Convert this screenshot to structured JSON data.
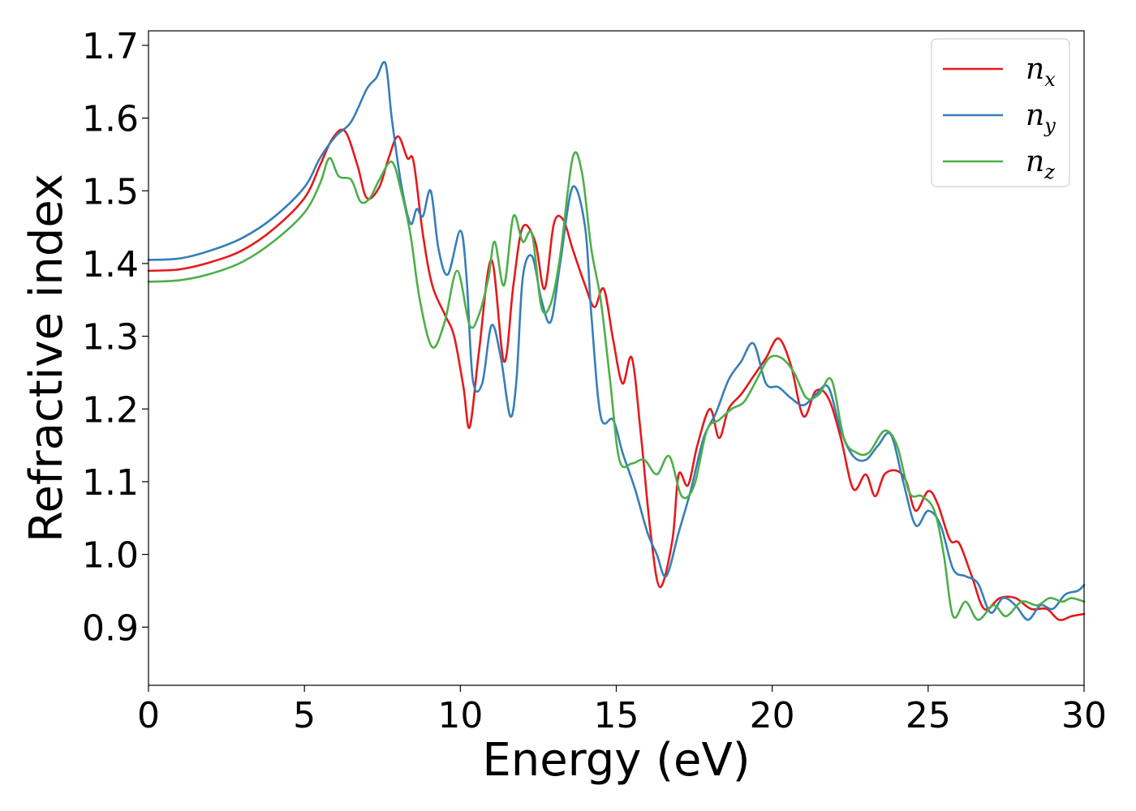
{
  "chart_data": {
    "type": "line",
    "title": "",
    "xlabel": "Energy (eV)",
    "ylabel": "Refractive index",
    "xlim": [
      0,
      30
    ],
    "ylim": [
      0.82,
      1.72
    ],
    "xticks": [
      0,
      5,
      10,
      15,
      20,
      25,
      30
    ],
    "xtick_labels": [
      "0",
      "5",
      "10",
      "15",
      "20",
      "25",
      "30"
    ],
    "yticks": [
      0.9,
      1.0,
      1.1,
      1.2,
      1.3,
      1.4,
      1.5,
      1.6,
      1.7
    ],
    "ytick_labels": [
      "0.9",
      "1.0",
      "1.1",
      "1.2",
      "1.3",
      "1.4",
      "1.5",
      "1.6",
      "1.7"
    ],
    "grid": false,
    "legend_position": "top-right",
    "series": [
      {
        "name": "n",
        "subscript": "x",
        "color": "#e41a1c",
        "points": [
          [
            0,
            1.39
          ],
          [
            1,
            1.392
          ],
          [
            2,
            1.402
          ],
          [
            3,
            1.418
          ],
          [
            4,
            1.447
          ],
          [
            5,
            1.49
          ],
          [
            5.5,
            1.535
          ],
          [
            5.9,
            1.572
          ],
          [
            6.3,
            1.582
          ],
          [
            6.7,
            1.535
          ],
          [
            7,
            1.49
          ],
          [
            7.4,
            1.505
          ],
          [
            7.7,
            1.545
          ],
          [
            8,
            1.575
          ],
          [
            8.3,
            1.545
          ],
          [
            8.5,
            1.54
          ],
          [
            8.8,
            1.44
          ],
          [
            9.1,
            1.37
          ],
          [
            9.5,
            1.33
          ],
          [
            9.8,
            1.3
          ],
          [
            10.1,
            1.23
          ],
          [
            10.3,
            1.175
          ],
          [
            10.6,
            1.28
          ],
          [
            11,
            1.405
          ],
          [
            11.4,
            1.265
          ],
          [
            11.7,
            1.37
          ],
          [
            12,
            1.45
          ],
          [
            12.4,
            1.43
          ],
          [
            12.7,
            1.365
          ],
          [
            13,
            1.455
          ],
          [
            13.3,
            1.46
          ],
          [
            13.6,
            1.42
          ],
          [
            14,
            1.37
          ],
          [
            14.3,
            1.34
          ],
          [
            14.6,
            1.365
          ],
          [
            14.9,
            1.295
          ],
          [
            15.2,
            1.235
          ],
          [
            15.5,
            1.27
          ],
          [
            15.8,
            1.16
          ],
          [
            16.1,
            1.03
          ],
          [
            16.4,
            0.955
          ],
          [
            16.8,
            1.02
          ],
          [
            17,
            1.11
          ],
          [
            17.3,
            1.095
          ],
          [
            17.6,
            1.15
          ],
          [
            18,
            1.2
          ],
          [
            18.3,
            1.16
          ],
          [
            18.6,
            1.2
          ],
          [
            19,
            1.22
          ],
          [
            19.4,
            1.245
          ],
          [
            19.8,
            1.27
          ],
          [
            20.2,
            1.297
          ],
          [
            20.6,
            1.26
          ],
          [
            21,
            1.19
          ],
          [
            21.4,
            1.225
          ],
          [
            21.8,
            1.215
          ],
          [
            22.2,
            1.16
          ],
          [
            22.6,
            1.09
          ],
          [
            23,
            1.11
          ],
          [
            23.3,
            1.08
          ],
          [
            23.6,
            1.11
          ],
          [
            24,
            1.115
          ],
          [
            24.3,
            1.1
          ],
          [
            24.6,
            1.06
          ],
          [
            25,
            1.087
          ],
          [
            25.3,
            1.07
          ],
          [
            25.7,
            1.02
          ],
          [
            26,
            1.015
          ],
          [
            26.4,
            0.97
          ],
          [
            26.8,
            0.925
          ],
          [
            27.3,
            0.94
          ],
          [
            27.8,
            0.94
          ],
          [
            28.3,
            0.925
          ],
          [
            28.8,
            0.925
          ],
          [
            29.2,
            0.91
          ],
          [
            29.6,
            0.915
          ],
          [
            30,
            0.918
          ]
        ]
      },
      {
        "name": "n",
        "subscript": "y",
        "color": "#377eb8",
        "points": [
          [
            0,
            1.405
          ],
          [
            1,
            1.407
          ],
          [
            2,
            1.418
          ],
          [
            3,
            1.435
          ],
          [
            4,
            1.463
          ],
          [
            5,
            1.505
          ],
          [
            5.5,
            1.545
          ],
          [
            6,
            1.575
          ],
          [
            6.5,
            1.595
          ],
          [
            7,
            1.64
          ],
          [
            7.3,
            1.655
          ],
          [
            7.6,
            1.675
          ],
          [
            7.8,
            1.6
          ],
          [
            8.1,
            1.51
          ],
          [
            8.4,
            1.455
          ],
          [
            8.6,
            1.475
          ],
          [
            8.8,
            1.465
          ],
          [
            9.05,
            1.5
          ],
          [
            9.3,
            1.42
          ],
          [
            9.6,
            1.385
          ],
          [
            10,
            1.445
          ],
          [
            10.2,
            1.38
          ],
          [
            10.4,
            1.24
          ],
          [
            10.7,
            1.235
          ],
          [
            11,
            1.315
          ],
          [
            11.3,
            1.27
          ],
          [
            11.6,
            1.19
          ],
          [
            11.8,
            1.24
          ],
          [
            12,
            1.38
          ],
          [
            12.3,
            1.41
          ],
          [
            12.6,
            1.35
          ],
          [
            12.9,
            1.32
          ],
          [
            13.2,
            1.4
          ],
          [
            13.6,
            1.505
          ],
          [
            14,
            1.45
          ],
          [
            14.2,
            1.33
          ],
          [
            14.5,
            1.19
          ],
          [
            14.9,
            1.185
          ],
          [
            15.2,
            1.14
          ],
          [
            15.6,
            1.09
          ],
          [
            16,
            1.03
          ],
          [
            16.3,
            1.0
          ],
          [
            16.6,
            0.97
          ],
          [
            17,
            1.03
          ],
          [
            17.4,
            1.09
          ],
          [
            17.8,
            1.16
          ],
          [
            18.2,
            1.195
          ],
          [
            18.6,
            1.24
          ],
          [
            19,
            1.265
          ],
          [
            19.4,
            1.29
          ],
          [
            19.8,
            1.235
          ],
          [
            20.2,
            1.23
          ],
          [
            20.6,
            1.215
          ],
          [
            21,
            1.205
          ],
          [
            21.4,
            1.22
          ],
          [
            21.8,
            1.23
          ],
          [
            22.2,
            1.17
          ],
          [
            22.6,
            1.135
          ],
          [
            23,
            1.13
          ],
          [
            23.4,
            1.15
          ],
          [
            23.8,
            1.165
          ],
          [
            24.2,
            1.1
          ],
          [
            24.6,
            1.04
          ],
          [
            25,
            1.06
          ],
          [
            25.4,
            1.04
          ],
          [
            25.8,
            0.98
          ],
          [
            26.2,
            0.97
          ],
          [
            26.6,
            0.96
          ],
          [
            27,
            0.92
          ],
          [
            27.4,
            0.94
          ],
          [
            27.8,
            0.93
          ],
          [
            28.2,
            0.91
          ],
          [
            28.6,
            0.93
          ],
          [
            29,
            0.925
          ],
          [
            29.4,
            0.945
          ],
          [
            29.8,
            0.95
          ],
          [
            30,
            0.958
          ]
        ]
      },
      {
        "name": "n",
        "subscript": "z",
        "color": "#4daf4a",
        "points": [
          [
            0,
            1.375
          ],
          [
            1,
            1.377
          ],
          [
            2,
            1.386
          ],
          [
            3,
            1.402
          ],
          [
            4,
            1.43
          ],
          [
            5,
            1.47
          ],
          [
            5.5,
            1.51
          ],
          [
            5.8,
            1.545
          ],
          [
            6.1,
            1.52
          ],
          [
            6.5,
            1.515
          ],
          [
            6.8,
            1.485
          ],
          [
            7.1,
            1.49
          ],
          [
            7.4,
            1.515
          ],
          [
            7.8,
            1.54
          ],
          [
            8.1,
            1.5
          ],
          [
            8.4,
            1.44
          ],
          [
            8.7,
            1.35
          ],
          [
            9.1,
            1.285
          ],
          [
            9.5,
            1.32
          ],
          [
            9.9,
            1.39
          ],
          [
            10.3,
            1.315
          ],
          [
            10.6,
            1.33
          ],
          [
            10.9,
            1.38
          ],
          [
            11.1,
            1.43
          ],
          [
            11.4,
            1.37
          ],
          [
            11.7,
            1.465
          ],
          [
            12,
            1.43
          ],
          [
            12.3,
            1.44
          ],
          [
            12.6,
            1.34
          ],
          [
            12.9,
            1.345
          ],
          [
            13.2,
            1.41
          ],
          [
            13.6,
            1.545
          ],
          [
            13.9,
            1.525
          ],
          [
            14.2,
            1.42
          ],
          [
            14.5,
            1.35
          ],
          [
            14.8,
            1.24
          ],
          [
            15.1,
            1.13
          ],
          [
            15.5,
            1.125
          ],
          [
            15.9,
            1.13
          ],
          [
            16.3,
            1.11
          ],
          [
            16.7,
            1.135
          ],
          [
            17.1,
            1.08
          ],
          [
            17.5,
            1.095
          ],
          [
            17.9,
            1.17
          ],
          [
            18.3,
            1.185
          ],
          [
            18.7,
            1.2
          ],
          [
            19.1,
            1.21
          ],
          [
            19.5,
            1.24
          ],
          [
            19.9,
            1.27
          ],
          [
            20.3,
            1.27
          ],
          [
            20.7,
            1.25
          ],
          [
            21.1,
            1.215
          ],
          [
            21.5,
            1.22
          ],
          [
            21.9,
            1.24
          ],
          [
            22.3,
            1.16
          ],
          [
            22.7,
            1.14
          ],
          [
            23.1,
            1.14
          ],
          [
            23.6,
            1.17
          ],
          [
            24,
            1.15
          ],
          [
            24.4,
            1.085
          ],
          [
            24.8,
            1.08
          ],
          [
            25.2,
            1.06
          ],
          [
            25.5,
            1.0
          ],
          [
            25.8,
            0.915
          ],
          [
            26.2,
            0.935
          ],
          [
            26.6,
            0.91
          ],
          [
            27.1,
            0.93
          ],
          [
            27.5,
            0.915
          ],
          [
            28,
            0.935
          ],
          [
            28.5,
            0.93
          ],
          [
            28.9,
            0.94
          ],
          [
            29.3,
            0.935
          ],
          [
            29.6,
            0.94
          ],
          [
            30,
            0.935
          ]
        ]
      }
    ]
  }
}
